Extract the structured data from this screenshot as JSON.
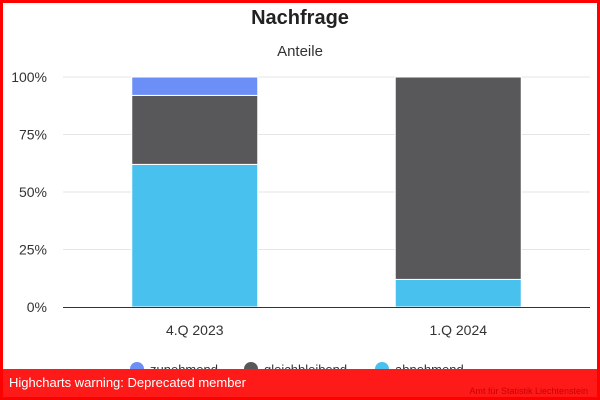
{
  "chart_data": {
    "type": "bar",
    "stacked": true,
    "title": "Nachfrage",
    "subtitle": "Anteile",
    "categories": [
      "4.Q 2023",
      "1.Q 2024"
    ],
    "series": [
      {
        "name": "zunehmend",
        "values": [
          8,
          0
        ],
        "color": "#6b8ef7"
      },
      {
        "name": "gleichbleibend",
        "values": [
          30,
          88
        ],
        "color": "#58585a"
      },
      {
        "name": "abnehmend",
        "values": [
          62,
          12
        ],
        "color": "#48c1ef"
      }
    ],
    "yticks": [
      "0%",
      "25%",
      "50%",
      "75%",
      "100%"
    ],
    "ylim": [
      0,
      100
    ],
    "grid": true,
    "legend": "bottom-center"
  },
  "warning": {
    "text": "Highcharts warning: Deprecated member"
  },
  "credit": {
    "text": "Amt für Statistik Liechtenstein"
  }
}
